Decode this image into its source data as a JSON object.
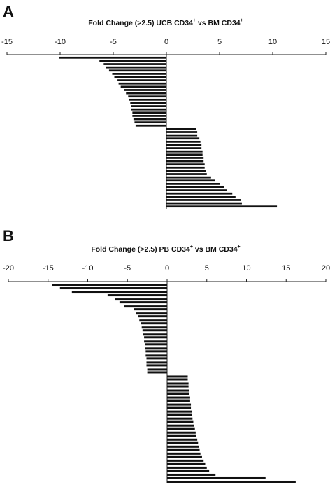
{
  "chart_data": [
    {
      "type": "bar",
      "orientation": "horizontal",
      "panel": "A",
      "title_prefix": "Fold Change (>2.5) UCB CD34",
      "title_sup1": "+",
      "title_mid": " vs BM CD34",
      "title_sup2": "+",
      "xlim": [
        -15,
        15
      ],
      "ticks": [
        -15,
        -10,
        -5,
        0,
        5,
        10,
        15
      ],
      "tick_labels": [
        "-15",
        "-10",
        "-5",
        "0",
        "5",
        "10",
        "15"
      ],
      "axis_position": "top",
      "values": [
        -10.1,
        -6.3,
        -5.9,
        -5.7,
        -5.4,
        -5.1,
        -4.9,
        -4.6,
        -4.5,
        -4.3,
        -4.0,
        -3.8,
        -3.6,
        -3.5,
        -3.4,
        -3.3,
        -3.3,
        -3.2,
        -3.2,
        -3.1,
        -3.0,
        -2.9,
        2.8,
        2.9,
        2.9,
        3.1,
        3.2,
        3.3,
        3.3,
        3.4,
        3.4,
        3.5,
        3.5,
        3.6,
        3.6,
        3.7,
        3.8,
        4.2,
        4.6,
        5.0,
        5.4,
        5.7,
        6.2,
        6.5,
        7.0,
        7.1,
        10.4
      ]
    },
    {
      "type": "bar",
      "orientation": "horizontal",
      "panel": "B",
      "title_prefix": "Fold Change (>2.5) PB CD34",
      "title_sup1": "+",
      "title_mid": " vs BM CD34",
      "title_sup2": "+",
      "xlim": [
        -20,
        20
      ],
      "ticks": [
        -20,
        -15,
        -10,
        -5,
        0,
        5,
        10,
        15,
        20
      ],
      "tick_labels": [
        "-20",
        "-15",
        "-10",
        "-5",
        "0",
        "5",
        "10",
        "15",
        "20"
      ],
      "axis_position": "top",
      "values": [
        -14.5,
        -13.5,
        -12.0,
        -7.5,
        -6.6,
        -6.0,
        -5.4,
        -4.2,
        -3.9,
        -3.7,
        -3.5,
        -3.3,
        -3.2,
        -3.1,
        -3.0,
        -2.9,
        -2.9,
        -2.8,
        -2.8,
        -2.7,
        -2.7,
        -2.6,
        -2.6,
        -2.6,
        -2.5,
        -2.5,
        2.6,
        2.6,
        2.7,
        2.7,
        2.8,
        2.8,
        2.9,
        2.9,
        3.0,
        3.0,
        3.1,
        3.1,
        3.2,
        3.3,
        3.4,
        3.5,
        3.6,
        3.7,
        3.8,
        3.9,
        4.0,
        4.1,
        4.2,
        4.4,
        4.6,
        4.8,
        5.0,
        5.3,
        6.1,
        12.4,
        16.2
      ]
    }
  ]
}
